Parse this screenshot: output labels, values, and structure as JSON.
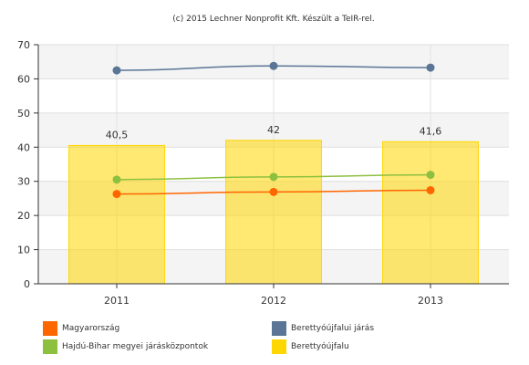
{
  "credit": "(c) 2015 Lechner Nonprofit Kft. Készült a TeIR-rel.",
  "chart_data": {
    "type": "bar",
    "categories": [
      "2011",
      "2012",
      "2013"
    ],
    "ylim": [
      0,
      70
    ],
    "yticks": [
      0,
      10,
      20,
      30,
      40,
      50,
      60,
      70
    ],
    "grid": true,
    "legend_position": "bottom",
    "bar_series": {
      "name": "Berettyóújfalu",
      "color": "#ffd700",
      "values": [
        40.5,
        42,
        41.6
      ],
      "data_labels": [
        "40,5",
        "42",
        "41,6"
      ]
    },
    "line_series": [
      {
        "name": "Berettyóújfalui járás",
        "color": "#5a7596",
        "values": [
          62.5,
          63.8,
          63.3
        ]
      },
      {
        "name": "Hajdú-Bihar megyei járásközpontok",
        "color": "#8dc03f",
        "values": [
          30.5,
          31.3,
          31.9
        ]
      },
      {
        "name": "Magyarország",
        "color": "#ff6600",
        "values": [
          26.3,
          26.9,
          27.4
        ]
      }
    ]
  },
  "legend": [
    {
      "label": "Magyarország",
      "color": "#ff6600"
    },
    {
      "label": "Berettyóújfalui járás",
      "color": "#5a7596"
    },
    {
      "label": "Hajdú-Bihar megyei járásközpontok",
      "color": "#8dc03f"
    },
    {
      "label": "Berettyóújfalu",
      "color": "#ffd700"
    }
  ]
}
